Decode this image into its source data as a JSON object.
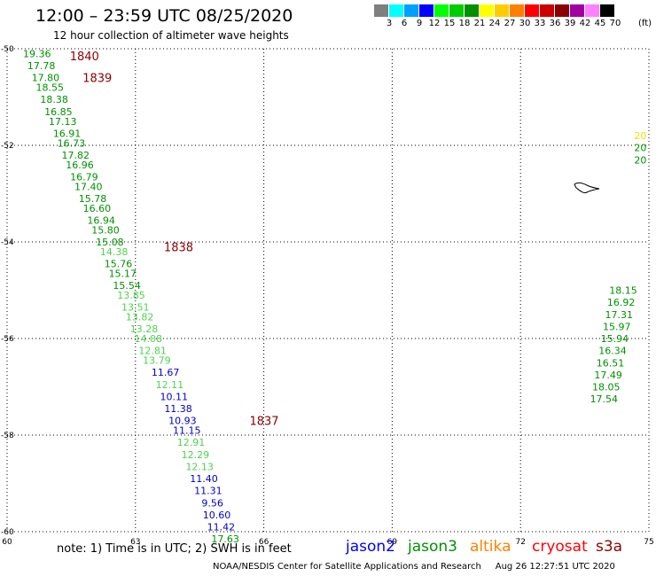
{
  "header": {
    "title": "12:00 – 23:59 UTC 08/25/2020",
    "subtitle": "12 hour collection of altimeter wave heights"
  },
  "color_scale": {
    "bins": [
      {
        "label": "3",
        "color": "#7f7f7f"
      },
      {
        "label": "6",
        "color": "#00ffff"
      },
      {
        "label": "9",
        "color": "#00a0ff"
      },
      {
        "label": "12",
        "color": "#0000ff"
      },
      {
        "label": "15",
        "color": "#00ff00"
      },
      {
        "label": "18",
        "color": "#00cc00"
      },
      {
        "label": "21",
        "color": "#009000"
      },
      {
        "label": "24",
        "color": "#ffff00"
      },
      {
        "label": "27",
        "color": "#ffcc00"
      },
      {
        "label": "30",
        "color": "#ff8000"
      },
      {
        "label": "33",
        "color": "#ff0000"
      },
      {
        "label": "36",
        "color": "#cc0000"
      },
      {
        "label": "39",
        "color": "#8b0000"
      },
      {
        "label": "42",
        "color": "#a000a0"
      },
      {
        "label": "45",
        "color": "#ff80ff"
      },
      {
        "label": "70",
        "color": "#000000"
      }
    ],
    "unit": "(ft)"
  },
  "axes": {
    "lon_ticks": [
      "60",
      "63",
      "66",
      "69",
      "72",
      "75"
    ],
    "lat_ticks": [
      "-50",
      "-52",
      "-54",
      "-56",
      "-58",
      "-60"
    ]
  },
  "times": [
    {
      "label": "1840",
      "lon": 61.3,
      "lat": -50.15
    },
    {
      "label": "1839",
      "lon": 61.6,
      "lat": -50.6
    },
    {
      "label": "1838",
      "lon": 63.5,
      "lat": -54.1
    },
    {
      "label": "1837",
      "lon": 65.5,
      "lat": -57.7
    }
  ],
  "observations": [
    {
      "value": "19.36",
      "lon": 60.7,
      "lat": -50.1,
      "color": "#009000"
    },
    {
      "value": "17.78",
      "lon": 60.8,
      "lat": -50.35,
      "color": "#009000"
    },
    {
      "value": "17.80",
      "lon": 60.9,
      "lat": -50.6,
      "color": "#009000"
    },
    {
      "value": "18.55",
      "lon": 61.0,
      "lat": -50.8,
      "color": "#009000"
    },
    {
      "value": "18.38",
      "lon": 61.1,
      "lat": -51.05,
      "color": "#009000"
    },
    {
      "value": "16.85",
      "lon": 61.2,
      "lat": -51.3,
      "color": "#009000"
    },
    {
      "value": "17.13",
      "lon": 61.3,
      "lat": -51.5,
      "color": "#009000"
    },
    {
      "value": "16.91",
      "lon": 61.4,
      "lat": -51.75,
      "color": "#009000"
    },
    {
      "value": "16.73",
      "lon": 61.5,
      "lat": -51.95,
      "color": "#009000"
    },
    {
      "value": "17.82",
      "lon": 61.6,
      "lat": -52.2,
      "color": "#009000"
    },
    {
      "value": "16.96",
      "lon": 61.7,
      "lat": -52.4,
      "color": "#009000"
    },
    {
      "value": "16.79",
      "lon": 61.8,
      "lat": -52.65,
      "color": "#009000"
    },
    {
      "value": "17.40",
      "lon": 61.9,
      "lat": -52.85,
      "color": "#009000"
    },
    {
      "value": "15.78",
      "lon": 62.0,
      "lat": -53.1,
      "color": "#009000"
    },
    {
      "value": "16.60",
      "lon": 62.1,
      "lat": -53.3,
      "color": "#009000"
    },
    {
      "value": "16.94",
      "lon": 62.2,
      "lat": -53.55,
      "color": "#009000"
    },
    {
      "value": "15.80",
      "lon": 62.3,
      "lat": -53.75,
      "color": "#009000"
    },
    {
      "value": "15.08",
      "lon": 62.4,
      "lat": -54.0,
      "color": "#009000"
    },
    {
      "value": "14.38",
      "lon": 62.5,
      "lat": -54.2,
      "color": "#4ed24e"
    },
    {
      "value": "15.76",
      "lon": 62.6,
      "lat": -54.45,
      "color": "#009000"
    },
    {
      "value": "15.17",
      "lon": 62.7,
      "lat": -54.65,
      "color": "#009000"
    },
    {
      "value": "15.54",
      "lon": 62.8,
      "lat": -54.9,
      "color": "#009000"
    },
    {
      "value": "13.85",
      "lon": 62.9,
      "lat": -55.1,
      "color": "#4ed24e"
    },
    {
      "value": "13.51",
      "lon": 63.0,
      "lat": -55.35,
      "color": "#4ed24e"
    },
    {
      "value": "13.82",
      "lon": 63.1,
      "lat": -55.55,
      "color": "#4ed24e"
    },
    {
      "value": "13.28",
      "lon": 63.2,
      "lat": -55.8,
      "color": "#4ed24e"
    },
    {
      "value": "14.08",
      "lon": 63.3,
      "lat": -56.0,
      "color": "#4ed24e"
    },
    {
      "value": "12.81",
      "lon": 63.4,
      "lat": -56.25,
      "color": "#4ed24e"
    },
    {
      "value": "13.79",
      "lon": 63.5,
      "lat": -56.45,
      "color": "#4ed24e"
    },
    {
      "value": "11.67",
      "lon": 63.7,
      "lat": -56.7,
      "color": "#0000c8"
    },
    {
      "value": "12.11",
      "lon": 63.8,
      "lat": -56.95,
      "color": "#4ed24e"
    },
    {
      "value": "10.11",
      "lon": 63.9,
      "lat": -57.2,
      "color": "#0000c8"
    },
    {
      "value": "11.38",
      "lon": 64.0,
      "lat": -57.45,
      "color": "#0000c8"
    },
    {
      "value": "10.93",
      "lon": 64.1,
      "lat": -57.7,
      "color": "#0000c8"
    },
    {
      "value": "11.15",
      "lon": 64.2,
      "lat": -57.9,
      "color": "#0000c8"
    },
    {
      "value": "12.91",
      "lon": 64.3,
      "lat": -58.15,
      "color": "#4ed24e"
    },
    {
      "value": "12.29",
      "lon": 64.4,
      "lat": -58.4,
      "color": "#4ed24e"
    },
    {
      "value": "12.13",
      "lon": 64.5,
      "lat": -58.65,
      "color": "#4ed24e"
    },
    {
      "value": "11.40",
      "lon": 64.6,
      "lat": -58.9,
      "color": "#0000c8"
    },
    {
      "value": "11.31",
      "lon": 64.7,
      "lat": -59.15,
      "color": "#0000c8"
    },
    {
      "value": "9.56",
      "lon": 64.8,
      "lat": -59.4,
      "color": "#0000c8"
    },
    {
      "value": "10.60",
      "lon": 64.9,
      "lat": -59.65,
      "color": "#0000c8"
    },
    {
      "value": "11.42",
      "lon": 65.0,
      "lat": -59.9,
      "color": "#0000c8"
    },
    {
      "value": "17.63",
      "lon": 65.1,
      "lat": -60.15,
      "color": "#009000"
    },
    {
      "value": "20",
      "lon": 74.8,
      "lat": -51.8,
      "color": "#ffd700"
    },
    {
      "value": "20",
      "lon": 74.8,
      "lat": -52.05,
      "color": "#009000"
    },
    {
      "value": "20",
      "lon": 74.8,
      "lat": -52.3,
      "color": "#009000"
    },
    {
      "value": "18.15",
      "lon": 74.4,
      "lat": -55.0,
      "color": "#009000"
    },
    {
      "value": "16.92",
      "lon": 74.35,
      "lat": -55.25,
      "color": "#009000"
    },
    {
      "value": "17.31",
      "lon": 74.3,
      "lat": -55.5,
      "color": "#009000"
    },
    {
      "value": "15.97",
      "lon": 74.25,
      "lat": -55.75,
      "color": "#009000"
    },
    {
      "value": "15.94",
      "lon": 74.2,
      "lat": -56.0,
      "color": "#009000"
    },
    {
      "value": "16.34",
      "lon": 74.15,
      "lat": -56.25,
      "color": "#009000"
    },
    {
      "value": "16.51",
      "lon": 74.1,
      "lat": -56.5,
      "color": "#009000"
    },
    {
      "value": "17.49",
      "lon": 74.05,
      "lat": -56.75,
      "color": "#009000"
    },
    {
      "value": "18.05",
      "lon": 74.0,
      "lat": -57.0,
      "color": "#009000"
    },
    {
      "value": "17.54",
      "lon": 73.95,
      "lat": -57.25,
      "color": "#009000"
    }
  ],
  "footer": {
    "note": "note: 1) Time is in UTC; 2) SWH is in feet",
    "satellites": [
      {
        "name": "jason2",
        "color": "#0000ff"
      },
      {
        "name": "jason3",
        "color": "#009000"
      },
      {
        "name": "altika",
        "color": "#ff8000"
      },
      {
        "name": "cryosat",
        "color": "#ff0000"
      },
      {
        "name": "s3a",
        "color": "#8b0000"
      }
    ],
    "credit": "NOAA/NESDIS Center for Satellite Applications and Research     Aug 26 12:27:51 UTC 2020"
  }
}
